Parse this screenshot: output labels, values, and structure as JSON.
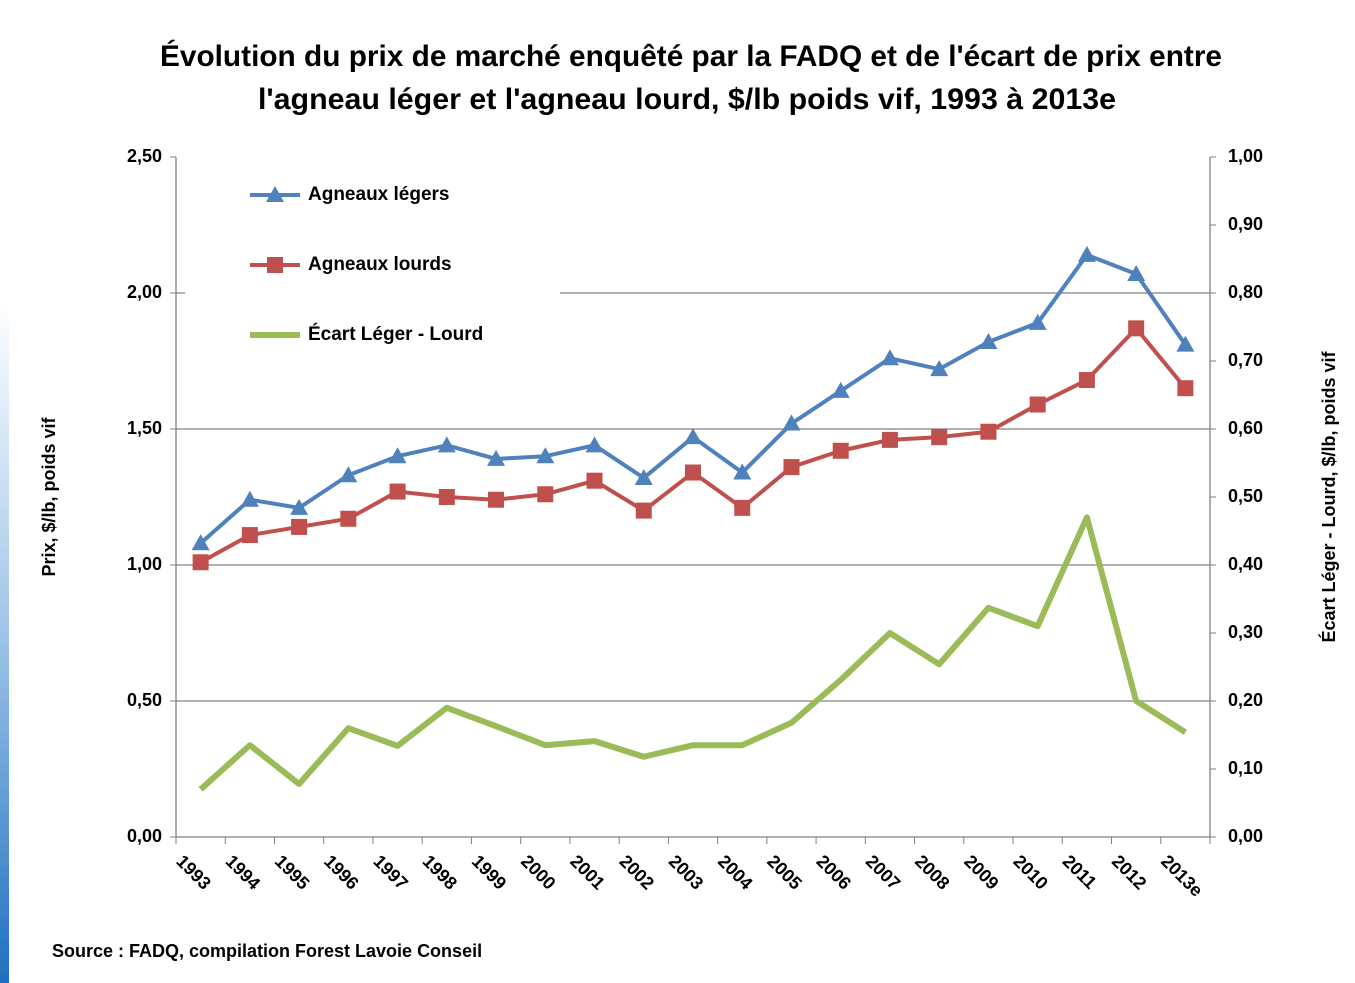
{
  "chart_data": {
    "type": "line",
    "title": [
      "Évolution du prix de marché enquêté par la FADQ et de l'écart de prix entre",
      "l'agneau léger et l'agneau lourd, $/lb poids vif, 1993 à 2013e"
    ],
    "ylabel": "Prix, $/lb, poids vif",
    "y2label": "Écart Léger - Lourd, $/lb, poids vif",
    "source": "Source : FADQ, compilation Forest Lavoie Conseil",
    "categories": [
      "1993",
      "1994",
      "1995",
      "1996",
      "1997",
      "1998",
      "1999",
      "2000",
      "2001",
      "2002",
      "2003",
      "2004",
      "2005",
      "2006",
      "2007",
      "2008",
      "2009",
      "2010",
      "2011",
      "2012",
      "2013e"
    ],
    "ylim": [
      0,
      2.5
    ],
    "yticks": [
      {
        "value": 0,
        "label": "0,00"
      },
      {
        "value": 0.5,
        "label": "0,50"
      },
      {
        "value": 1,
        "label": "1,00"
      },
      {
        "value": 1.5,
        "label": "1,50"
      },
      {
        "value": 2,
        "label": "2,00"
      },
      {
        "value": 2.5,
        "label": "2,50"
      }
    ],
    "y2lim": [
      0,
      1
    ],
    "y2ticks": [
      {
        "value": 0,
        "label": "0,00"
      },
      {
        "value": 0.1,
        "label": "0,10"
      },
      {
        "value": 0.2,
        "label": "0,20"
      },
      {
        "value": 0.3,
        "label": "0,30"
      },
      {
        "value": 0.4,
        "label": "0,40"
      },
      {
        "value": 0.5,
        "label": "0,50"
      },
      {
        "value": 0.6,
        "label": "0,60"
      },
      {
        "value": 0.7,
        "label": "0,70"
      },
      {
        "value": 0.8,
        "label": "0,80"
      },
      {
        "value": 0.9,
        "label": "0,90"
      },
      {
        "value": 1,
        "label": "1,00"
      }
    ],
    "grid": true,
    "legend": "upper left",
    "series": [
      {
        "name": "Agneaux légers",
        "color": "#4f81bd",
        "marker": "triangle",
        "values": [
          1.08,
          1.24,
          1.21,
          1.33,
          1.4,
          1.44,
          1.39,
          1.4,
          1.44,
          1.32,
          1.47,
          1.34,
          1.52,
          1.64,
          1.76,
          1.72,
          1.82,
          1.89,
          2.14,
          2.07,
          1.81
        ]
      },
      {
        "name": "Agneaux lourds",
        "color": "#c0504d",
        "marker": "square",
        "values": [
          1.01,
          1.11,
          1.14,
          1.17,
          1.27,
          1.25,
          1.24,
          1.26,
          1.31,
          1.2,
          1.34,
          1.21,
          1.36,
          1.42,
          1.46,
          1.47,
          1.49,
          1.59,
          1.68,
          1.87,
          1.65
        ]
      },
      {
        "name": "Écart Léger - Lourd",
        "color": "#9bbb59",
        "marker": "none",
        "axis": "y2",
        "values": [
          0.07,
          0.135,
          0.078,
          0.16,
          0.134,
          0.19,
          0.163,
          0.135,
          0.141,
          0.118,
          0.135,
          0.135,
          0.168,
          0.231,
          0.3,
          0.254,
          0.337,
          0.31,
          0.47,
          0.2,
          0.154
        ]
      }
    ]
  }
}
